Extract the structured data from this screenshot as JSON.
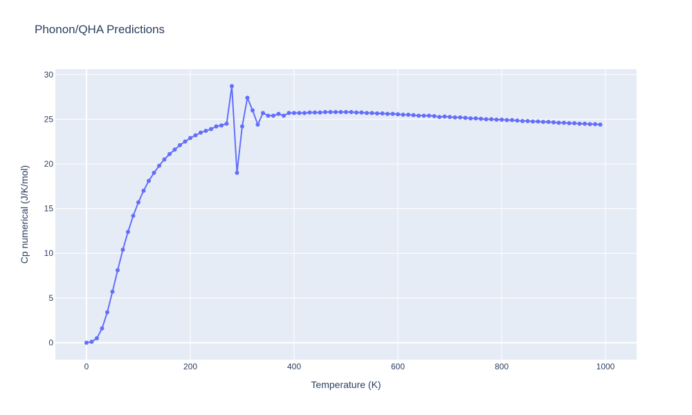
{
  "chart_data": {
    "type": "line",
    "title": "Phonon/QHA Predictions",
    "xlabel": "Temperature (K)",
    "ylabel": "Cp numerical (J/K/mol)",
    "xlim": [
      -60,
      1060
    ],
    "ylim": [
      -1.9,
      30.6
    ],
    "xticks": [
      0,
      200,
      400,
      600,
      800,
      1000
    ],
    "yticks": [
      0,
      5,
      10,
      15,
      20,
      25,
      30
    ],
    "grid": true,
    "markers": true,
    "line_color": "#636efa",
    "plot_bg": "#e5ecf6",
    "series": [
      {
        "x": [
          0,
          10,
          20,
          30,
          40,
          50,
          60,
          70,
          80,
          90,
          100,
          110,
          120,
          130,
          140,
          150,
          160,
          170,
          180,
          190,
          200,
          210,
          220,
          230,
          240,
          250,
          260,
          270,
          280,
          290,
          300,
          310,
          320,
          330,
          340,
          350,
          360,
          370,
          380,
          390,
          400,
          410,
          420,
          430,
          440,
          450,
          460,
          470,
          480,
          490,
          500,
          510,
          520,
          530,
          540,
          550,
          560,
          570,
          580,
          590,
          600,
          610,
          620,
          630,
          640,
          650,
          660,
          670,
          680,
          690,
          700,
          710,
          720,
          730,
          740,
          750,
          760,
          770,
          780,
          790,
          800,
          810,
          820,
          830,
          840,
          850,
          860,
          870,
          880,
          890,
          900,
          910,
          920,
          930,
          940,
          950,
          960,
          970,
          980,
          990
        ],
        "values": [
          0.0,
          0.1,
          0.5,
          1.6,
          3.4,
          5.7,
          8.1,
          10.4,
          12.4,
          14.2,
          15.7,
          17.0,
          18.1,
          19.0,
          19.8,
          20.5,
          21.1,
          21.6,
          22.1,
          22.5,
          22.9,
          23.2,
          23.5,
          23.7,
          23.9,
          24.2,
          24.3,
          24.5,
          28.7,
          19.0,
          24.2,
          27.4,
          26.0,
          24.4,
          25.7,
          25.4,
          25.4,
          25.6,
          25.4,
          25.7,
          25.7,
          25.7,
          25.7,
          25.75,
          25.75,
          25.75,
          25.8,
          25.8,
          25.8,
          25.8,
          25.8,
          25.8,
          25.75,
          25.75,
          25.7,
          25.7,
          25.65,
          25.65,
          25.6,
          25.6,
          25.55,
          25.5,
          25.5,
          25.45,
          25.4,
          25.4,
          25.4,
          25.35,
          25.25,
          25.3,
          25.25,
          25.2,
          25.2,
          25.15,
          25.1,
          25.1,
          25.05,
          25.0,
          25.0,
          24.95,
          24.95,
          24.9,
          24.9,
          24.85,
          24.8,
          24.8,
          24.75,
          24.75,
          24.7,
          24.7,
          24.65,
          24.6,
          24.6,
          24.55,
          24.55,
          24.5,
          24.5,
          24.45,
          24.45,
          24.4
        ]
      }
    ]
  }
}
